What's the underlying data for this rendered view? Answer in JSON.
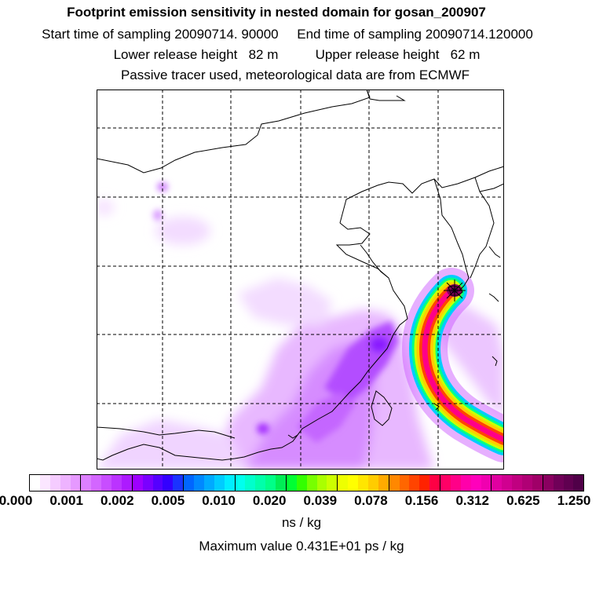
{
  "header": {
    "title": "Footprint emission sensitivity in nested domain for gosan_200907",
    "sampling_start": "Start time of sampling 20090714. 90000",
    "sampling_end": "End time of sampling 20090714.120000",
    "lower_release": "Lower release height   82 m",
    "upper_release": "Upper release height   62 m",
    "tracer_note": "Passive tracer used, meteorological data are from ECMWF"
  },
  "map": {
    "grid_lines": "dashed",
    "release_marker": "star-icon",
    "field": "footprint emission sensitivity"
  },
  "legend": {
    "tick_labels": [
      "0.000",
      "0.001",
      "0.002",
      "0.005",
      "0.010",
      "0.020",
      "0.039",
      "0.078",
      "0.156",
      "0.312",
      "0.625",
      "1.250"
    ],
    "colors": [
      "#ffffff",
      "#fbe6ff",
      "#f5ccff",
      "#eeb3ff",
      "#e699ff",
      "#dd80ff",
      "#d366ff",
      "#c84dff",
      "#bb33ff",
      "#ad1aff",
      "#9e00ff",
      "#7a00ff",
      "#5500ff",
      "#3300ff",
      "#1a33ff",
      "#0066ff",
      "#0088ff",
      "#00aaff",
      "#00ccff",
      "#00eeff",
      "#00ffee",
      "#00ffcc",
      "#00ffaa",
      "#00ff88",
      "#00ee55",
      "#00ff33",
      "#33ff00",
      "#77ff00",
      "#aaff00",
      "#ccff00",
      "#eeff00",
      "#ffff00",
      "#ffe600",
      "#ffcc00",
      "#ffaa00",
      "#ff8800",
      "#ff6600",
      "#ff4400",
      "#ff2200",
      "#ff0044",
      "#ff0066",
      "#ff0088",
      "#ff00aa",
      "#ff00bb",
      "#f000b0",
      "#e000a0",
      "#d00090",
      "#c00080",
      "#b00075",
      "#a00068",
      "#8a0060",
      "#700058",
      "#600050",
      "#500048"
    ],
    "units": "ns / kg",
    "maximum": "Maximum value  0.431E+01 ps / kg"
  }
}
